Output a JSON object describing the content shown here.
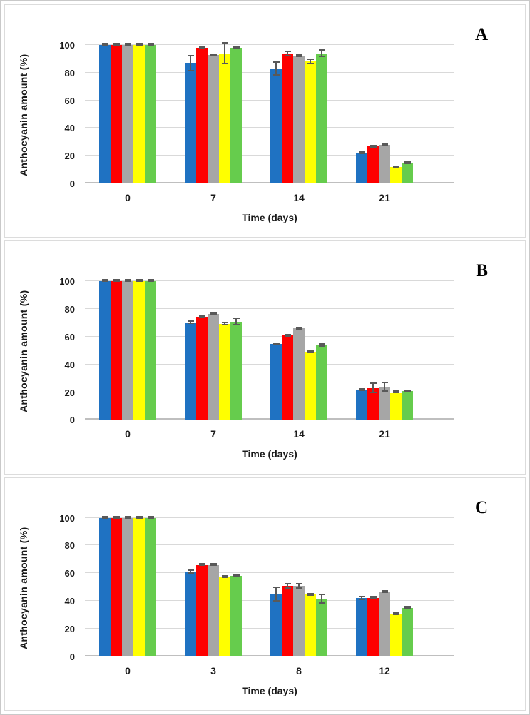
{
  "figure": {
    "background_color": "#ffffff",
    "border_color": "#c9c9c9",
    "gridline_color": "#d9d9d9",
    "error_bar_color": "#595959"
  },
  "chart_data": [
    {
      "type": "bar",
      "letter": "A",
      "xlabel": "Time (days)",
      "ylabel": "Anthocyanin amount (%)",
      "ylim": [
        0,
        100
      ],
      "yticks": [
        0,
        20,
        40,
        60,
        80,
        100
      ],
      "grid": "horizontal",
      "legend": "none",
      "categories": [
        "0",
        "7",
        "14",
        "21"
      ],
      "series": [
        {
          "name": "blue",
          "color": "#1f72c2",
          "values": [
            100,
            87,
            83,
            22
          ],
          "errors": [
            0.5,
            6,
            5,
            1
          ]
        },
        {
          "name": "red",
          "color": "#fe0000",
          "values": [
            100,
            98,
            94,
            27
          ],
          "errors": [
            0.5,
            1,
            2,
            1
          ]
        },
        {
          "name": "gray",
          "color": "#a6a6a6",
          "values": [
            100,
            93,
            92,
            28
          ],
          "errors": [
            0.5,
            1,
            1,
            1
          ]
        },
        {
          "name": "yellow",
          "color": "#ffff00",
          "values": [
            100,
            94,
            88,
            12
          ],
          "errors": [
            0.5,
            8,
            2,
            1
          ]
        },
        {
          "name": "green",
          "color": "#66cc4d",
          "values": [
            100,
            98,
            94,
            15
          ],
          "errors": [
            0.5,
            1,
            3,
            1
          ]
        }
      ]
    },
    {
      "type": "bar",
      "letter": "B",
      "xlabel": "Time (days)",
      "ylabel": "Anthocyanin amount (%)",
      "ylim": [
        0,
        100
      ],
      "yticks": [
        0,
        20,
        40,
        60,
        80,
        100
      ],
      "grid": "horizontal",
      "legend": "none",
      "categories": [
        "0",
        "7",
        "14",
        "21"
      ],
      "series": [
        {
          "name": "blue",
          "color": "#1f72c2",
          "values": [
            100,
            70.5,
            55,
            21.5
          ],
          "errors": [
            0.5,
            1.5,
            1,
            0.7
          ]
        },
        {
          "name": "red",
          "color": "#fe0000",
          "values": [
            100,
            74.5,
            61,
            23
          ],
          "errors": [
            0.5,
            0.5,
            1,
            4
          ]
        },
        {
          "name": "gray",
          "color": "#a6a6a6",
          "values": [
            100,
            76.5,
            66,
            24
          ],
          "errors": [
            0.5,
            0.5,
            1,
            3.5
          ]
        },
        {
          "name": "yellow",
          "color": "#ffff00",
          "values": [
            100,
            69.5,
            49,
            19.5
          ],
          "errors": [
            0.5,
            1.5,
            1,
            0.5
          ]
        },
        {
          "name": "green",
          "color": "#66cc4d",
          "values": [
            100,
            71,
            54,
            21
          ],
          "errors": [
            0.5,
            3,
            1.5,
            1
          ]
        }
      ]
    },
    {
      "type": "bar",
      "letter": "C",
      "xlabel": "Time (days)",
      "ylabel": "Anthocyanin amount (%)",
      "ylim": [
        0,
        100
      ],
      "yticks": [
        0,
        20,
        40,
        60,
        80,
        100
      ],
      "grid": "horizontal",
      "legend": "none",
      "categories": [
        "0",
        "3",
        "8",
        "12"
      ],
      "series": [
        {
          "name": "blue",
          "color": "#1f72c2",
          "values": [
            100,
            61,
            45,
            42
          ],
          "errors": [
            0.5,
            1.5,
            5.5,
            1.5
          ]
        },
        {
          "name": "red",
          "color": "#fe0000",
          "values": [
            100,
            66,
            51,
            42
          ],
          "errors": [
            0.5,
            0.5,
            2,
            0.5
          ]
        },
        {
          "name": "gray",
          "color": "#a6a6a6",
          "values": [
            100,
            66,
            51,
            46
          ],
          "errors": [
            0.5,
            0.5,
            2,
            0.5
          ]
        },
        {
          "name": "yellow",
          "color": "#ffff00",
          "values": [
            100,
            57,
            44.5,
            30.5
          ],
          "errors": [
            0.5,
            0.5,
            1,
            1
          ]
        },
        {
          "name": "green",
          "color": "#66cc4d",
          "values": [
            100,
            58,
            41.5,
            35
          ],
          "errors": [
            0.5,
            1,
            3.5,
            0.5
          ]
        }
      ]
    }
  ]
}
